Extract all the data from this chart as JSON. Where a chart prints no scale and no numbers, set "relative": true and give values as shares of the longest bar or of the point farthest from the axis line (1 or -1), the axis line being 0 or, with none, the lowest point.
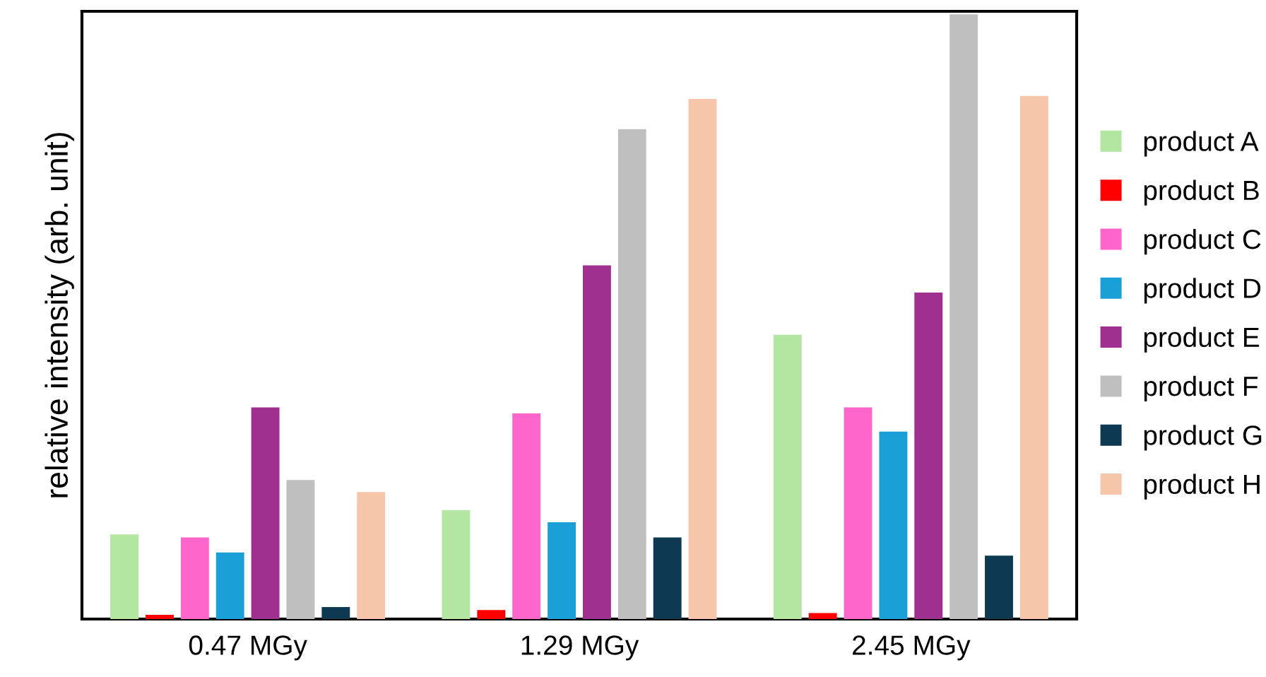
{
  "chart_data": {
    "type": "bar",
    "relative": true,
    "ylabel": "relative intensity (arb. unit)",
    "categories": [
      "0.47 MGy",
      "1.29 MGy",
      "2.45 MGy"
    ],
    "legend": "right",
    "grid": false,
    "series": [
      {
        "name": "product A",
        "color": "#b3e6a0",
        "values": [
          0.14,
          0.18,
          0.47
        ]
      },
      {
        "name": "product B",
        "color": "#ff0000",
        "values": [
          0.007,
          0.015,
          0.01
        ]
      },
      {
        "name": "product C",
        "color": "#ff66cc",
        "values": [
          0.135,
          0.34,
          0.35
        ]
      },
      {
        "name": "product D",
        "color": "#1a9fd6",
        "values": [
          0.11,
          0.16,
          0.31
        ]
      },
      {
        "name": "product E",
        "color": "#a0308f",
        "values": [
          0.35,
          0.585,
          0.54
        ]
      },
      {
        "name": "product F",
        "color": "#bfbfbf",
        "values": [
          0.23,
          0.81,
          1
        ]
      },
      {
        "name": "product G",
        "color": "#0d3a52",
        "values": [
          0.02,
          0.135,
          0.105
        ]
      },
      {
        "name": "product H",
        "color": "#f5c6aa",
        "values": [
          0.21,
          0.86,
          0.865
        ]
      }
    ]
  }
}
